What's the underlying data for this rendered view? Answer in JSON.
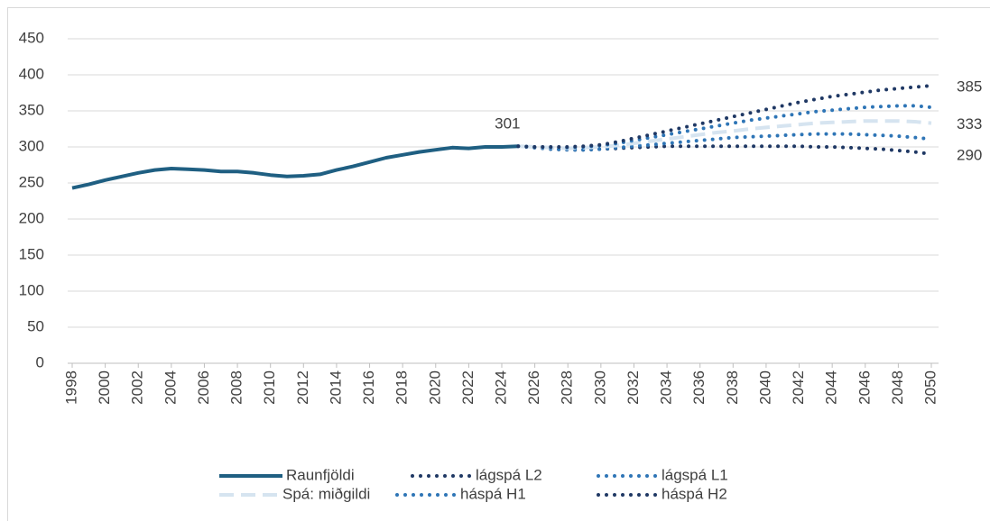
{
  "chart_data": {
    "type": "line",
    "x": [
      1998,
      1999,
      2000,
      2001,
      2002,
      2003,
      2004,
      2005,
      2006,
      2007,
      2008,
      2009,
      2010,
      2011,
      2012,
      2013,
      2014,
      2015,
      2016,
      2017,
      2018,
      2019,
      2020,
      2021,
      2022,
      2023,
      2024,
      2025,
      2026,
      2027,
      2028,
      2029,
      2030,
      2031,
      2032,
      2033,
      2034,
      2035,
      2036,
      2037,
      2038,
      2039,
      2040,
      2041,
      2042,
      2043,
      2044,
      2045,
      2046,
      2047,
      2048,
      2049,
      2050
    ],
    "xlim": [
      1998,
      2050
    ],
    "xticks": [
      1998,
      2000,
      2002,
      2004,
      2006,
      2008,
      2010,
      2012,
      2014,
      2016,
      2018,
      2020,
      2022,
      2024,
      2026,
      2028,
      2030,
      2032,
      2034,
      2036,
      2038,
      2040,
      2042,
      2044,
      2046,
      2048,
      2050
    ],
    "ylim": [
      0,
      450
    ],
    "yticks": [
      0,
      50,
      100,
      150,
      200,
      250,
      300,
      350,
      400,
      450
    ],
    "grid": true,
    "legend": "bottom",
    "series": [
      {
        "name": "Raunfjöldi",
        "color": "#1f5f82",
        "style": "solid",
        "values": [
          243,
          248,
          254,
          259,
          264,
          268,
          270,
          269,
          268,
          266,
          266,
          264,
          261,
          259,
          260,
          262,
          268,
          273,
          279,
          285,
          289,
          293,
          296,
          299,
          298,
          300,
          300,
          301,
          null,
          null,
          null,
          null,
          null,
          null,
          null,
          null,
          null,
          null,
          null,
          null,
          null,
          null,
          null,
          null,
          null,
          null,
          null,
          null,
          null,
          null,
          null,
          null,
          null
        ],
        "value_labels": [
          null,
          null,
          null,
          null,
          null,
          null,
          null,
          null,
          null,
          null,
          null,
          null,
          null,
          null,
          null,
          null,
          null,
          null,
          null,
          null,
          null,
          null,
          null,
          null,
          null,
          null,
          null,
          "301",
          null,
          null,
          null,
          null,
          null,
          null,
          null,
          null,
          null,
          null,
          null,
          null,
          null,
          null,
          null,
          null,
          null,
          null,
          null,
          null,
          null,
          null,
          null,
          null,
          null
        ]
      },
      {
        "name": "lágspá L2",
        "color": "#1f3864",
        "style": "dotted",
        "values": [
          null,
          null,
          null,
          null,
          null,
          null,
          null,
          null,
          null,
          null,
          null,
          null,
          null,
          null,
          null,
          null,
          null,
          null,
          null,
          null,
          null,
          null,
          null,
          null,
          null,
          null,
          null,
          301,
          299,
          297,
          296,
          296,
          297,
          298,
          299,
          300,
          301,
          301,
          301,
          301,
          301,
          301,
          301,
          301,
          301,
          300,
          300,
          299,
          298,
          297,
          295,
          293,
          290
        ],
        "value_labels": [
          null,
          null,
          null,
          null,
          null,
          null,
          null,
          null,
          null,
          null,
          null,
          null,
          null,
          null,
          null,
          null,
          null,
          null,
          null,
          null,
          null,
          null,
          null,
          null,
          null,
          null,
          null,
          null,
          null,
          null,
          null,
          null,
          null,
          null,
          null,
          null,
          null,
          null,
          null,
          null,
          null,
          null,
          null,
          null,
          null,
          null,
          null,
          null,
          null,
          null,
          null,
          null,
          "290"
        ]
      },
      {
        "name": "lágspá L1",
        "color": "#2e75b6",
        "style": "dotted",
        "values": [
          null,
          null,
          null,
          null,
          null,
          null,
          null,
          null,
          null,
          null,
          null,
          null,
          null,
          null,
          null,
          null,
          null,
          null,
          null,
          null,
          null,
          null,
          null,
          null,
          null,
          null,
          null,
          301,
          299,
          297,
          296,
          296,
          297,
          299,
          301,
          303,
          305,
          307,
          309,
          311,
          313,
          314,
          315,
          316,
          317,
          318,
          318,
          318,
          317,
          316,
          315,
          313,
          311
        ]
      },
      {
        "name": "Spá: miðgildi",
        "color": "#d6e4f0",
        "style": "dashed",
        "values": [
          null,
          null,
          null,
          null,
          null,
          null,
          null,
          null,
          null,
          null,
          null,
          null,
          null,
          null,
          null,
          null,
          null,
          null,
          null,
          null,
          null,
          null,
          null,
          null,
          null,
          null,
          null,
          301,
          300,
          299,
          298,
          299,
          300,
          302,
          305,
          308,
          311,
          314,
          317,
          320,
          322,
          325,
          327,
          329,
          331,
          333,
          334,
          335,
          336,
          336,
          336,
          335,
          333
        ],
        "value_labels": [
          null,
          null,
          null,
          null,
          null,
          null,
          null,
          null,
          null,
          null,
          null,
          null,
          null,
          null,
          null,
          null,
          null,
          null,
          null,
          null,
          null,
          null,
          null,
          null,
          null,
          null,
          null,
          null,
          null,
          null,
          null,
          null,
          null,
          null,
          null,
          null,
          null,
          null,
          null,
          null,
          null,
          null,
          null,
          null,
          null,
          null,
          null,
          null,
          null,
          null,
          null,
          null,
          "333"
        ]
      },
      {
        "name": "háspá H1",
        "color": "#2e75b6",
        "style": "dotted",
        "values": [
          null,
          null,
          null,
          null,
          null,
          null,
          null,
          null,
          null,
          null,
          null,
          null,
          null,
          null,
          null,
          null,
          null,
          null,
          null,
          null,
          null,
          null,
          null,
          null,
          null,
          null,
          null,
          301,
          300,
          299,
          299,
          300,
          302,
          305,
          309,
          313,
          317,
          321,
          325,
          329,
          333,
          337,
          340,
          343,
          346,
          349,
          351,
          353,
          355,
          356,
          357,
          357,
          355
        ]
      },
      {
        "name": "háspá H2",
        "color": "#1f3864",
        "style": "dotted",
        "values": [
          null,
          null,
          null,
          null,
          null,
          null,
          null,
          null,
          null,
          null,
          null,
          null,
          null,
          null,
          null,
          null,
          null,
          null,
          null,
          null,
          null,
          null,
          null,
          null,
          null,
          null,
          null,
          301,
          300,
          300,
          300,
          301,
          303,
          307,
          312,
          317,
          322,
          327,
          332,
          337,
          342,
          347,
          352,
          357,
          362,
          366,
          370,
          373,
          376,
          379,
          381,
          383,
          385
        ],
        "value_labels": [
          null,
          null,
          null,
          null,
          null,
          null,
          null,
          null,
          null,
          null,
          null,
          null,
          null,
          null,
          null,
          null,
          null,
          null,
          null,
          null,
          null,
          null,
          null,
          null,
          null,
          null,
          null,
          null,
          null,
          null,
          null,
          null,
          null,
          null,
          null,
          null,
          null,
          null,
          null,
          null,
          null,
          null,
          null,
          null,
          null,
          null,
          null,
          null,
          null,
          null,
          null,
          null,
          "385"
        ]
      }
    ]
  }
}
